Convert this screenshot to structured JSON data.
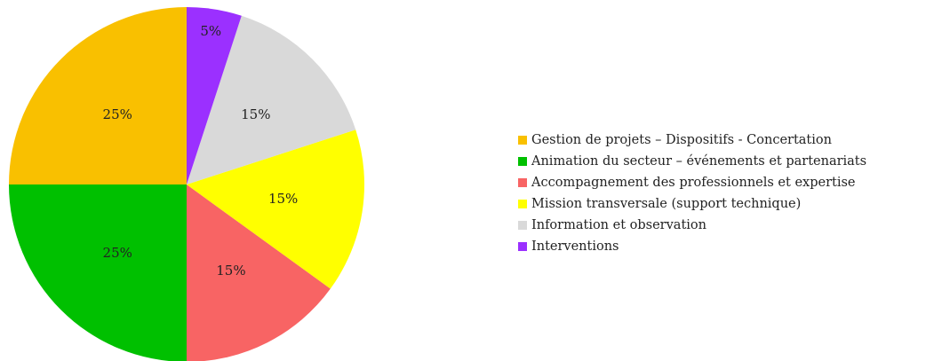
{
  "chart_data": {
    "type": "pie",
    "categories": [
      "Gestion de projets – Dispositifs - Concertation",
      "Animation du secteur – événements et partenariats",
      "Accompagnement des professionnels et expertise",
      "Mission transversale (support technique)",
      "Information et observation",
      "Interventions"
    ],
    "values": [
      25,
      25,
      15,
      15,
      15,
      5
    ],
    "value_labels": [
      "25%",
      "25%",
      "15%",
      "15%",
      "15%",
      "5%"
    ],
    "colors": [
      "#f9c000",
      "#00c000",
      "#f86464",
      "#ffff00",
      "#d9d9d9",
      "#9b30ff"
    ],
    "start_angle": 90,
    "direction": "counterclockwise",
    "legend": "right"
  }
}
